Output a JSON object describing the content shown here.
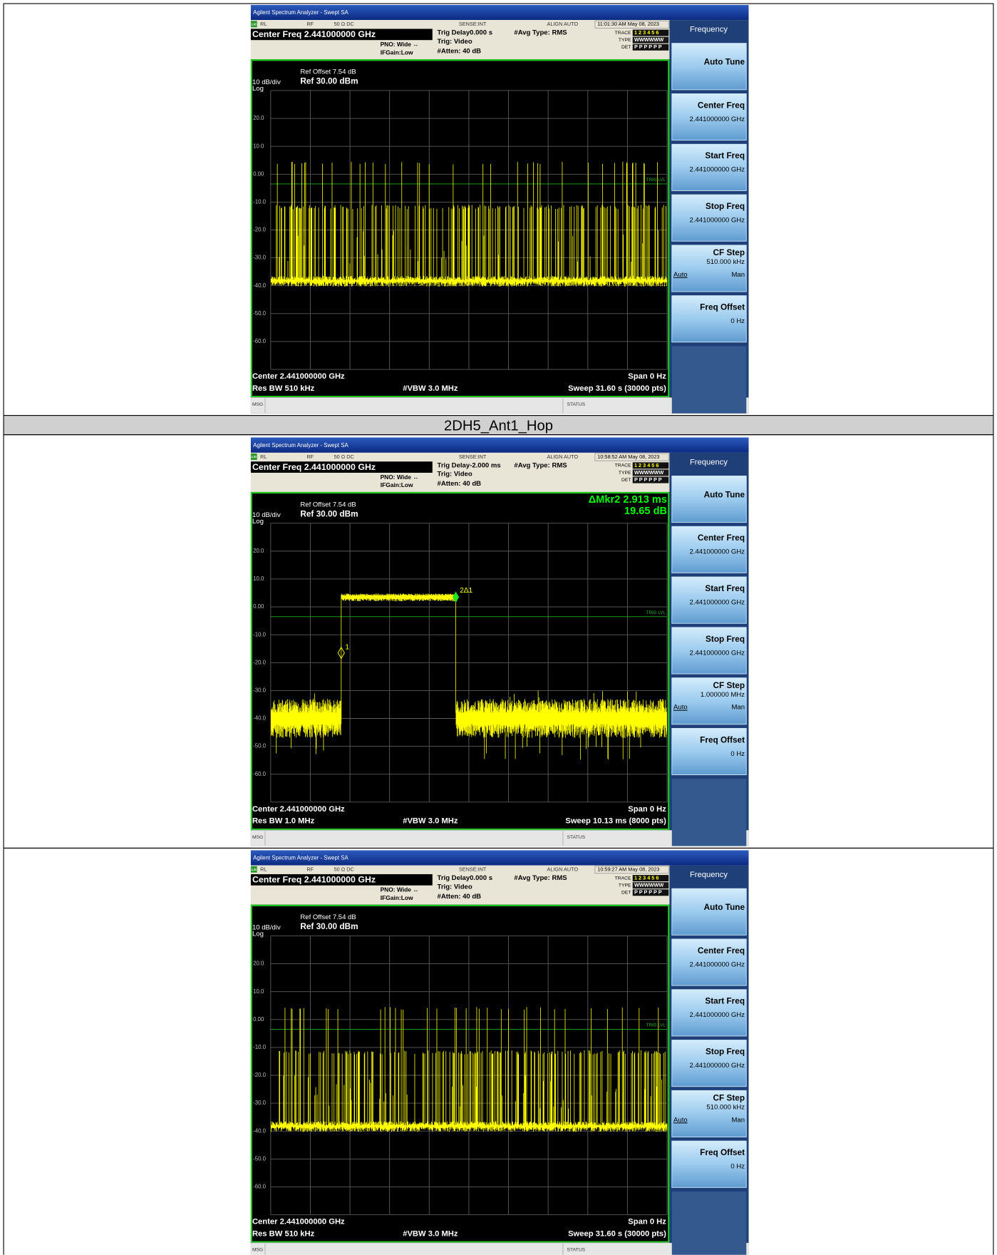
{
  "row_label": "2DH5_Ant1_Hop",
  "screens": [
    {
      "title_bar": "Agilent Spectrum Analyzer - Swept SA",
      "lxi": "LXI",
      "status": [
        "RL",
        "RF",
        "50 Ω  DC",
        "SENSE:INT",
        "ALIGN AUTO",
        "11:01:30 AM May 08, 2023"
      ],
      "center_freq": "Center Freq 2.441000000 GHz",
      "pno": "PNO: Wide ↔",
      "ifgain": "IFGain:Low",
      "trig_delay": "Trig Delay0.000 s",
      "trig": "Trig: Video",
      "atten": "#Atten: 40 dB",
      "avg": "#Avg Type: RMS",
      "trace_rows": [
        {
          "label": "TRACE",
          "value": "1 2 3 4 5 6"
        },
        {
          "label": "TYPE",
          "value": "WWWWWW"
        },
        {
          "label": "DET",
          "value": "P P P P P P"
        }
      ],
      "ref_offset": "Ref Offset 7.54 dB",
      "scale": "10 dB/div",
      "ref": "Ref 30.00 dBm",
      "log": "Log",
      "y_labels": [
        "20.0",
        "10.0",
        "0.00",
        "-10.0",
        "-20.0",
        "-30.0",
        "-40.0",
        "-50.0",
        "-60.0"
      ],
      "trig_lvl": "TRIG LVL",
      "footer": {
        "center": "Center 2.441000000 GHz",
        "span": "Span 0 Hz",
        "rbw": "Res BW 510 kHz",
        "vbw": "#VBW 3.0 MHz",
        "sweep": "Sweep  31.60 s (30000 pts)"
      },
      "msg": "MSG",
      "status_label": "STATUS",
      "softkeys": {
        "header": "Frequency",
        "keys": [
          {
            "label": "Auto Tune"
          },
          {
            "label": "Center Freq",
            "value": "2.441000000 GHz"
          },
          {
            "label": "Start Freq",
            "value": "2.441000000 GHz"
          },
          {
            "label": "Stop Freq",
            "value": "2.441000000 GHz"
          },
          {
            "label": "CF Step",
            "value": "510.000 kHz",
            "auto": "Auto",
            "man": "Man"
          },
          {
            "label": "Freq Offset",
            "value": "0 Hz"
          }
        ]
      }
    },
    {
      "title_bar": "Agilent Spectrum Analyzer - Swept SA",
      "lxi": "LXI",
      "status": [
        "RL",
        "RF",
        "50 Ω  DC",
        "SENSE:INT",
        "ALIGN AUTO",
        "10:58:52 AM May 08, 2023"
      ],
      "center_freq": "Center Freq 2.441000000 GHz",
      "pno": "PNO: Wide ↔",
      "ifgain": "IFGain:Low",
      "trig_delay": "Trig Delay-2.000 ms",
      "trig": "Trig: Video",
      "atten": "#Atten: 40 dB",
      "avg": "#Avg Type: RMS",
      "trace_rows": [
        {
          "label": "TRACE",
          "value": "1 2 3 4 5 6"
        },
        {
          "label": "TYPE",
          "value": "WWWWWW"
        },
        {
          "label": "DET",
          "value": "P P P P P P"
        }
      ],
      "ref_offset": "Ref Offset 7.54 dB",
      "scale": "10 dB/div",
      "ref": "Ref 30.00 dBm",
      "log": "Log",
      "y_labels": [
        "20.0",
        "10.0",
        "0.00",
        "-10.0",
        "-20.0",
        "-30.0",
        "-40.0",
        "-50.0",
        "-60.0"
      ],
      "trig_lvl": "TRIG LVL",
      "marker": {
        "readout": [
          "ΔMkr2 2.913 ms",
          "19.65 dB"
        ],
        "labels": [
          "1",
          "2Δ1"
        ]
      },
      "footer": {
        "center": "Center 2.441000000 GHz",
        "span": "Span 0 Hz",
        "rbw": "Res BW 1.0 MHz",
        "vbw": "#VBW 3.0 MHz",
        "sweep": "Sweep  10.13 ms (8000 pts)"
      },
      "msg": "MSG",
      "status_label": "STATUS",
      "softkeys": {
        "header": "Frequency",
        "keys": [
          {
            "label": "Auto Tune"
          },
          {
            "label": "Center Freq",
            "value": "2.441000000 GHz"
          },
          {
            "label": "Start Freq",
            "value": "2.441000000 GHz"
          },
          {
            "label": "Stop Freq",
            "value": "2.441000000 GHz"
          },
          {
            "label": "CF Step",
            "value": "1.000000 MHz",
            "auto": "Auto",
            "man": "Man"
          },
          {
            "label": "Freq Offset",
            "value": "0 Hz"
          }
        ]
      }
    },
    {
      "title_bar": "Agilent Spectrum Analyzer - Swept SA",
      "lxi": "LXI",
      "status": [
        "RL",
        "RF",
        "50 Ω  DC",
        "SENSE:INT",
        "ALIGN AUTO",
        "10:59:27 AM May 08, 2023"
      ],
      "center_freq": "Center Freq 2.441000000 GHz",
      "pno": "PNO: Wide ↔",
      "ifgain": "IFGain:Low",
      "trig_delay": "Trig Delay0.000 s",
      "trig": "Trig: Video",
      "atten": "#Atten: 40 dB",
      "avg": "#Avg Type: RMS",
      "trace_rows": [
        {
          "label": "TRACE",
          "value": "1 2 3 4 5 6"
        },
        {
          "label": "TYPE",
          "value": "WWWWWW"
        },
        {
          "label": "DET",
          "value": "P P P P P P"
        }
      ],
      "ref_offset": "Ref Offset 7.54 dB",
      "scale": "10 dB/div",
      "ref": "Ref 30.00 dBm",
      "log": "Log",
      "y_labels": [
        "20.0",
        "10.0",
        "0.00",
        "-10.0",
        "-20.0",
        "-30.0",
        "-40.0",
        "-50.0",
        "-60.0"
      ],
      "trig_lvl": "TRIG LVL",
      "footer": {
        "center": "Center 2.441000000 GHz",
        "span": "Span 0 Hz",
        "rbw": "Res BW 510 kHz",
        "vbw": "#VBW 3.0 MHz",
        "sweep": "Sweep  31.60 s (30000 pts)"
      },
      "msg": "MSG",
      "status_label": "STATUS",
      "softkeys": {
        "header": "Frequency",
        "keys": [
          {
            "label": "Auto Tune"
          },
          {
            "label": "Center Freq",
            "value": "2.441000000 GHz"
          },
          {
            "label": "Start Freq",
            "value": "2.441000000 GHz"
          },
          {
            "label": "Stop Freq",
            "value": "2.441000000 GHz"
          },
          {
            "label": "CF Step",
            "value": "510.000 kHz",
            "auto": "Auto",
            "man": "Man"
          },
          {
            "label": "Freq Offset",
            "value": "0 Hz"
          }
        ]
      }
    }
  ]
}
